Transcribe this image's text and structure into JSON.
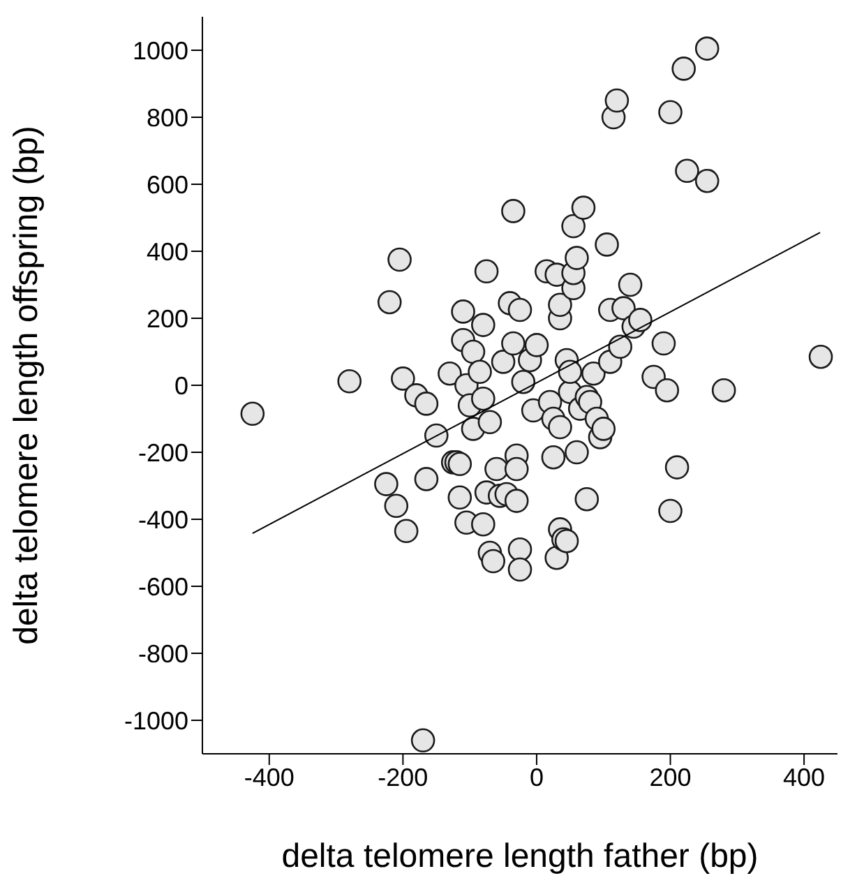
{
  "chart_data": {
    "type": "scatter",
    "xlabel": "delta telomere length father (bp)",
    "ylabel": "delta telomere length offspring (bp)",
    "xlim": [
      -500,
      450
    ],
    "ylim": [
      -1100,
      1100
    ],
    "xticks": [
      -400,
      -200,
      0,
      200,
      400
    ],
    "yticks": [
      -1000,
      -800,
      -600,
      -400,
      -200,
      0,
      200,
      400,
      600,
      800,
      1000
    ],
    "grid": false,
    "legend": false,
    "marker": "circle",
    "series": [
      {
        "color": "#e6e6e6",
        "x": [
          -425,
          -280,
          -205,
          -220,
          -200,
          -180,
          -165,
          -225,
          -210,
          -195,
          -165,
          -150,
          -125,
          -120,
          -115,
          -130,
          -115,
          -110,
          -110,
          -105,
          -100,
          -105,
          -95,
          -95,
          -85,
          -80,
          -80,
          -75,
          -75,
          -70,
          -80,
          -70,
          -65,
          -60,
          -55,
          -50,
          -45,
          -40,
          -35,
          -35,
          -30,
          -30,
          -30,
          -25,
          -25,
          -20,
          -25,
          -10,
          -5,
          0,
          15,
          20,
          25,
          25,
          30,
          35,
          35,
          40,
          45,
          35,
          35,
          30,
          45,
          50,
          50,
          55,
          60,
          55,
          60,
          55,
          65,
          70,
          75,
          75,
          80,
          85,
          90,
          95,
          100,
          105,
          110,
          115,
          120,
          110,
          125,
          130,
          140,
          145,
          155,
          175,
          190,
          195,
          200,
          200,
          210,
          220,
          225,
          255,
          255,
          280,
          425,
          -170
        ],
        "values": [
          -85,
          12,
          375,
          248,
          20,
          -30,
          -55,
          -295,
          -360,
          -435,
          -280,
          -150,
          -230,
          -230,
          -235,
          35,
          -335,
          220,
          135,
          0,
          -60,
          -410,
          -130,
          100,
          40,
          180,
          -40,
          340,
          -320,
          -110,
          -415,
          -500,
          -525,
          -250,
          -330,
          70,
          -325,
          245,
          520,
          125,
          -210,
          -250,
          -345,
          225,
          -490,
          10,
          -550,
          75,
          -75,
          120,
          340,
          -50,
          -215,
          -100,
          -515,
          -125,
          -430,
          -460,
          -465,
          200,
          240,
          330,
          75,
          -20,
          40,
          290,
          -200,
          335,
          380,
          475,
          -70,
          530,
          -35,
          -340,
          -50,
          35,
          -100,
          -155,
          -130,
          420,
          225,
          800,
          850,
          70,
          115,
          230,
          300,
          175,
          195,
          25,
          125,
          -15,
          815,
          -375,
          -245,
          945,
          640,
          1005,
          610,
          -15,
          85,
          -1060
        ]
      },
      {
        "type": "line",
        "color": "#000000",
        "marker": "none",
        "x": [
          -425,
          424
        ],
        "values": [
          -442,
          456
        ]
      }
    ]
  }
}
